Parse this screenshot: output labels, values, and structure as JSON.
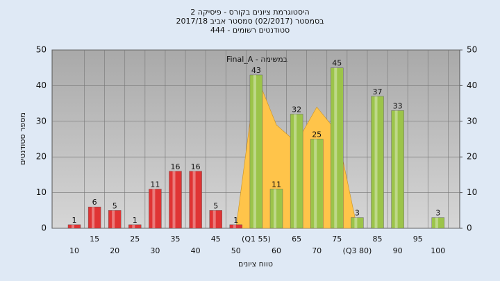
{
  "chart_data": {
    "type": "bar",
    "title": [
      "היסטוגרמת ציונים בקורס - פיסיקה 2",
      "בסמסטר  (02/2017)  סמסטר אביב 2017/18",
      "סטודנטים רשומים - 444"
    ],
    "annotation": "Final_A - במשימה",
    "x_label": "טווח ציונים",
    "y_label": "מספר סטודנטים",
    "categories": [
      "10",
      "15",
      "20",
      "25",
      "30",
      "35",
      "40",
      "45",
      "50",
      "(Q1 55)",
      "60",
      "65",
      "70",
      "75",
      "(Q3 80)",
      "85",
      "90",
      "95",
      "100"
    ],
    "series": [
      {
        "color": "#e03434",
        "values": [
          1,
          6,
          5,
          1,
          11,
          16,
          16,
          5,
          1,
          null,
          null,
          null,
          null,
          null,
          null,
          null,
          null,
          null,
          null
        ]
      },
      {
        "color": "#9cc44a",
        "values": [
          null,
          null,
          null,
          null,
          null,
          null,
          null,
          null,
          null,
          43,
          11,
          32,
          25,
          45,
          3,
          37,
          33,
          null,
          3
        ]
      }
    ],
    "area": {
      "color": "#ffc44a",
      "values": [
        null,
        null,
        null,
        null,
        null,
        null,
        null,
        null,
        0,
        43,
        29,
        24,
        34,
        27,
        0,
        null,
        null,
        null,
        null
      ]
    },
    "ylim": [
      0,
      50
    ],
    "yticks": [
      0,
      10,
      20,
      30,
      40,
      50
    ],
    "y2lim": [
      0,
      50
    ],
    "y2ticks": [
      0,
      10,
      20,
      30,
      40,
      50
    ],
    "grid": true
  }
}
